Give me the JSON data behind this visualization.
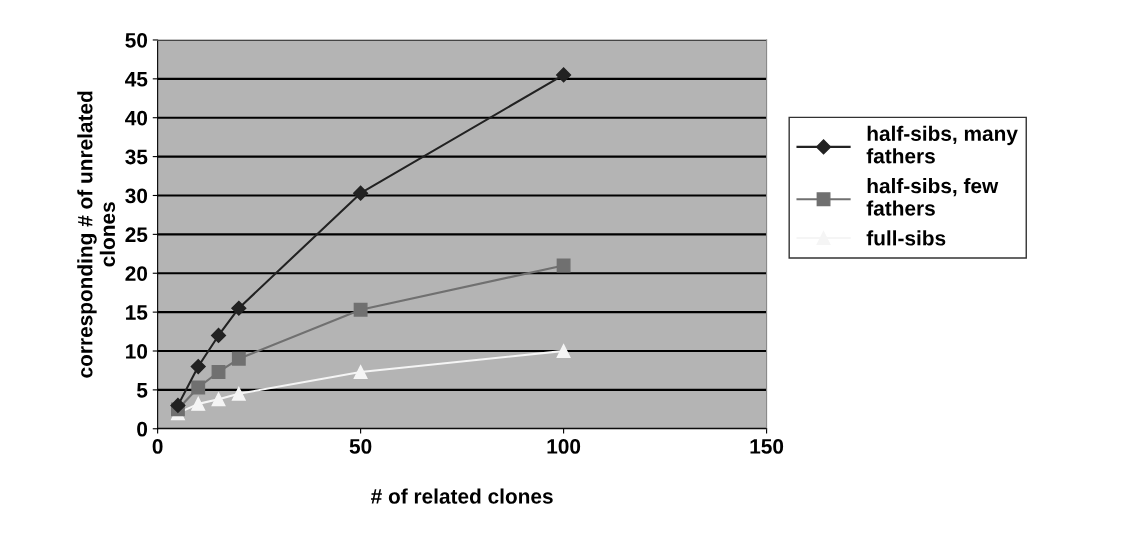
{
  "chart_data": {
    "type": "line",
    "xlabel": "# of related clones",
    "ylabel": "corresponding # of unrelated\nclones",
    "x": [
      5,
      10,
      15,
      20,
      50,
      100
    ],
    "series": [
      {
        "name": "half-sibs, many\nfathers",
        "color": "#222222",
        "marker": "diamond",
        "values": [
          3,
          8,
          12,
          15.5,
          30.3,
          45.5
        ]
      },
      {
        "name": "half-sibs, few\nfathers",
        "color": "#707070",
        "marker": "square",
        "values": [
          2.5,
          5.3,
          7.3,
          9,
          15.3,
          21
        ]
      },
      {
        "name": "full-sibs",
        "color": "#f5f5f5",
        "marker": "triangle",
        "values": [
          2,
          3.2,
          3.8,
          4.5,
          7.3,
          10
        ]
      }
    ],
    "xlim": [
      0,
      150
    ],
    "xticks": [
      0,
      50,
      100,
      150
    ],
    "ylim": [
      0,
      50
    ],
    "yticks": [
      0,
      5,
      10,
      15,
      20,
      25,
      30,
      35,
      40,
      45,
      50
    ],
    "grid": "y",
    "legend": "right",
    "line_style": "solid"
  }
}
